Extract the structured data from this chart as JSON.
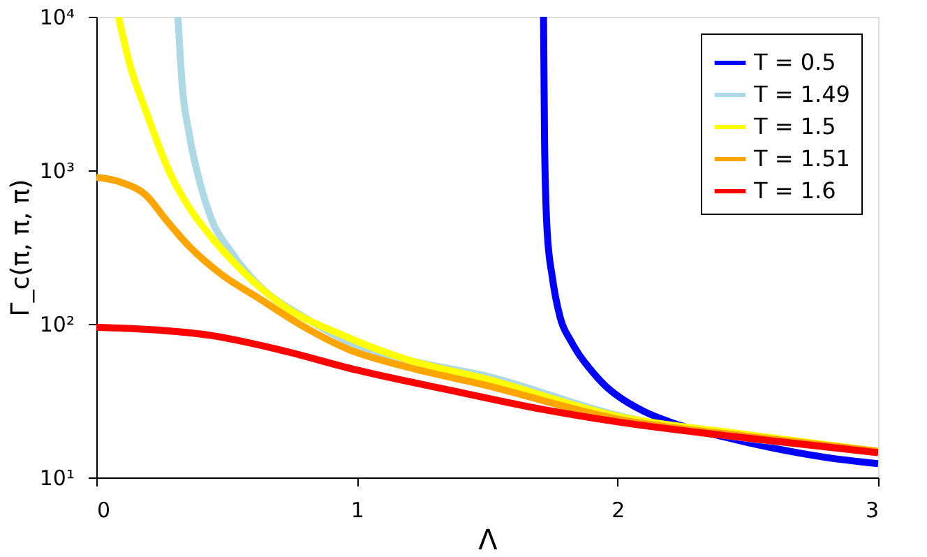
{
  "chart_data": {
    "type": "line",
    "xlabel": "Λ",
    "ylabel": "Γ_c(π, π, π)",
    "xlim": [
      0,
      3
    ],
    "xticks": [
      0,
      1,
      2,
      3
    ],
    "ylim": [
      10,
      10000
    ],
    "yticks": [
      {
        "value": 10,
        "label": "10¹"
      },
      {
        "value": 100,
        "label": "10²"
      },
      {
        "value": 1000,
        "label": "10³"
      },
      {
        "value": 10000,
        "label": "10⁴"
      }
    ],
    "log": "y",
    "grid": false,
    "legend": "top right",
    "marker": "none",
    "line_style": "solid",
    "series": [
      {
        "name": "T = 0.5",
        "color": "#0000ff",
        "x": [
          1.716,
          1.72,
          1.73,
          1.75,
          1.78,
          1.82,
          1.85,
          1.894,
          1.95,
          2.0,
          2.1,
          2.2,
          2.4,
          2.6,
          2.8,
          3.0
        ],
        "values": [
          10000,
          1500,
          400,
          200,
          110,
          78,
          64,
          51,
          40,
          34,
          27,
          23,
          18.5,
          15.5,
          13.5,
          12.3
        ]
      },
      {
        "name": "T = 1.49",
        "color": "#add8e6",
        "x": [
          0.313,
          0.33,
          0.356,
          0.4,
          0.44,
          0.52,
          0.618,
          0.8,
          0.97,
          1.2,
          1.49,
          2.0,
          2.5,
          3.0
        ],
        "values": [
          10000,
          3500,
          1740,
          800,
          490,
          290,
          182,
          110,
          76,
          58,
          46,
          25.4,
          null,
          14.8
        ]
      },
      {
        "name": "T = 1.5",
        "color": "#ffff00",
        "x": [
          0.085,
          0.13,
          0.19,
          0.28,
          0.36,
          0.44,
          0.55,
          0.7,
          0.97,
          1.2,
          1.49,
          2.0,
          2.5,
          3.0
        ],
        "values": [
          10000,
          4800,
          2440,
          980,
          560,
          370,
          230,
          138,
          81,
          58,
          44,
          25,
          19,
          14.8
        ]
      },
      {
        "name": "T = 1.51",
        "color": "#ffa500",
        "x": [
          0,
          0.1,
          0.19,
          0.27,
          0.36,
          0.48,
          0.62,
          0.8,
          0.97,
          1.2,
          1.49,
          2.0,
          2.5,
          3.0
        ],
        "values": [
          900,
          830,
          690,
          470,
          315,
          210,
          148,
          95,
          68,
          52,
          40,
          24,
          18.5,
          14.8
        ]
      },
      {
        "name": "T = 1.6",
        "color": "#ff0000",
        "x": [
          0,
          0.2,
          0.44,
          0.7,
          1.0,
          1.39,
          1.7,
          2.0,
          2.5,
          3.0
        ],
        "values": [
          95,
          92,
          84,
          68,
          50,
          36,
          28,
          23,
          18,
          14.5
        ]
      }
    ]
  }
}
